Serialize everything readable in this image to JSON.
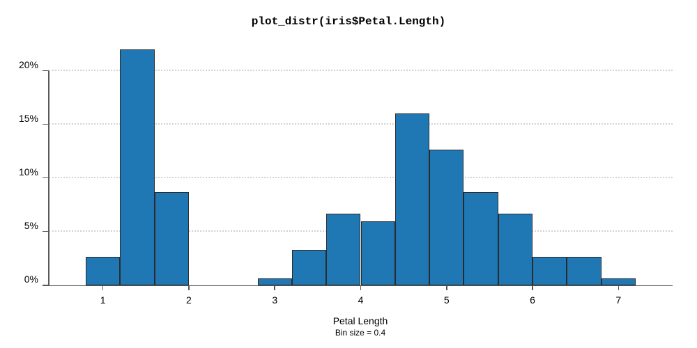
{
  "chart_data": {
    "type": "bar",
    "subtype": "histogram",
    "title": "plot_distr(iris$Petal.Length)",
    "xlabel": "Petal Length",
    "subtitle": "Bin size = 0.4",
    "ylabel": "",
    "bin_size": 0.4,
    "y_unit": "percent",
    "bins": [
      {
        "from": 0.8,
        "to": 1.2,
        "pct": 2.67
      },
      {
        "from": 1.2,
        "to": 1.6,
        "pct": 22.0
      },
      {
        "from": 1.6,
        "to": 2.0,
        "pct": 8.67
      },
      {
        "from": 2.0,
        "to": 2.4,
        "pct": 0
      },
      {
        "from": 2.4,
        "to": 2.8,
        "pct": 0
      },
      {
        "from": 2.8,
        "to": 3.2,
        "pct": 0.67
      },
      {
        "from": 3.2,
        "to": 3.6,
        "pct": 3.33
      },
      {
        "from": 3.6,
        "to": 4.0,
        "pct": 6.67
      },
      {
        "from": 4.0,
        "to": 4.4,
        "pct": 6.0
      },
      {
        "from": 4.4,
        "to": 4.8,
        "pct": 16.0
      },
      {
        "from": 4.8,
        "to": 5.2,
        "pct": 12.67
      },
      {
        "from": 5.2,
        "to": 5.6,
        "pct": 8.67
      },
      {
        "from": 5.6,
        "to": 6.0,
        "pct": 6.67
      },
      {
        "from": 6.0,
        "to": 6.4,
        "pct": 2.67
      },
      {
        "from": 6.4,
        "to": 6.8,
        "pct": 2.67
      },
      {
        "from": 6.8,
        "to": 7.2,
        "pct": 0.67
      }
    ],
    "x_ticks": [
      {
        "value": 1,
        "label": "1"
      },
      {
        "value": 2,
        "label": "2"
      },
      {
        "value": 3,
        "label": "3"
      },
      {
        "value": 4,
        "label": "4"
      },
      {
        "value": 5,
        "label": "5"
      },
      {
        "value": 6,
        "label": "6"
      },
      {
        "value": 7,
        "label": "7"
      }
    ],
    "y_ticks": [
      {
        "value": 0,
        "label": "0%"
      },
      {
        "value": 5,
        "label": "5%"
      },
      {
        "value": 10,
        "label": "10%"
      },
      {
        "value": 15,
        "label": "15%"
      },
      {
        "value": 20,
        "label": "20%"
      }
    ],
    "xlim": [
      0.37,
      7.63
    ],
    "ylim": [
      0,
      22.7
    ],
    "y_spine_top": 20,
    "grid": true,
    "grid_style": "dotted-horizontal",
    "legend": "none",
    "colors": {
      "bar_fill": "#1f77b4",
      "bar_edge": "#2b2b2b",
      "axis": "#595959",
      "grid": "#d2d2d2",
      "text": "#000000",
      "background": "#ffffff"
    }
  }
}
